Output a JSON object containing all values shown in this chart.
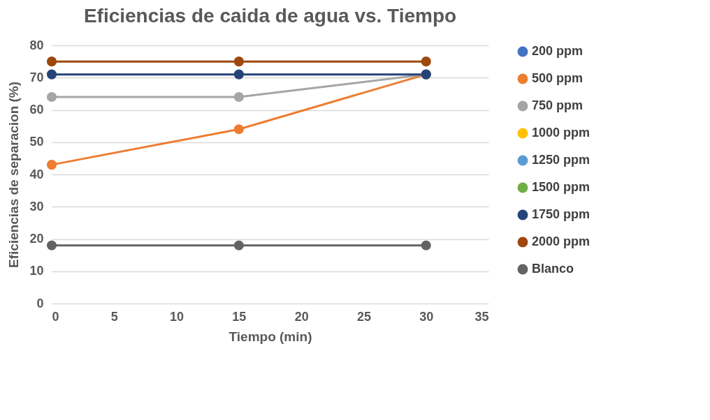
{
  "chart_data": {
    "type": "line",
    "title": "Eficiencias de caida de agua vs. Tiempo",
    "xlabel": "Tiempo (min)",
    "ylabel": "Eficiencias de separacion (%)",
    "x": [
      0,
      15,
      30
    ],
    "xlim": [
      0,
      35
    ],
    "xticks": [
      0,
      5,
      10,
      15,
      20,
      25,
      30,
      35
    ],
    "ylim": [
      0,
      80
    ],
    "yticks": [
      0,
      10,
      20,
      30,
      40,
      50,
      60,
      70,
      80
    ],
    "grid": "y",
    "legend": "right",
    "marker": "circle",
    "line_style": "solid",
    "series": [
      {
        "name": "200 ppm",
        "color": "#4472c4",
        "values": [
          null,
          null,
          null
        ]
      },
      {
        "name": "500 ppm",
        "color": "#ed7d31",
        "values": [
          43,
          54,
          71
        ]
      },
      {
        "name": "750 ppm",
        "color": "#a5a5a5",
        "values": [
          64,
          64,
          71
        ]
      },
      {
        "name": "1000 ppm",
        "color": "#ffc000",
        "values": [
          null,
          null,
          null
        ]
      },
      {
        "name": "1250 ppm",
        "color": "#5b9bd5",
        "values": [
          null,
          null,
          null
        ]
      },
      {
        "name": "1500 ppm",
        "color": "#70ad47",
        "values": [
          null,
          null,
          null
        ]
      },
      {
        "name": "1750 ppm",
        "color": "#264478",
        "values": [
          71,
          71,
          71
        ]
      },
      {
        "name": "2000 ppm",
        "color": "#9e480e",
        "values": [
          75,
          75,
          75
        ]
      },
      {
        "name": "Blanco",
        "color": "#636363",
        "values": [
          18,
          18,
          18
        ]
      }
    ]
  }
}
